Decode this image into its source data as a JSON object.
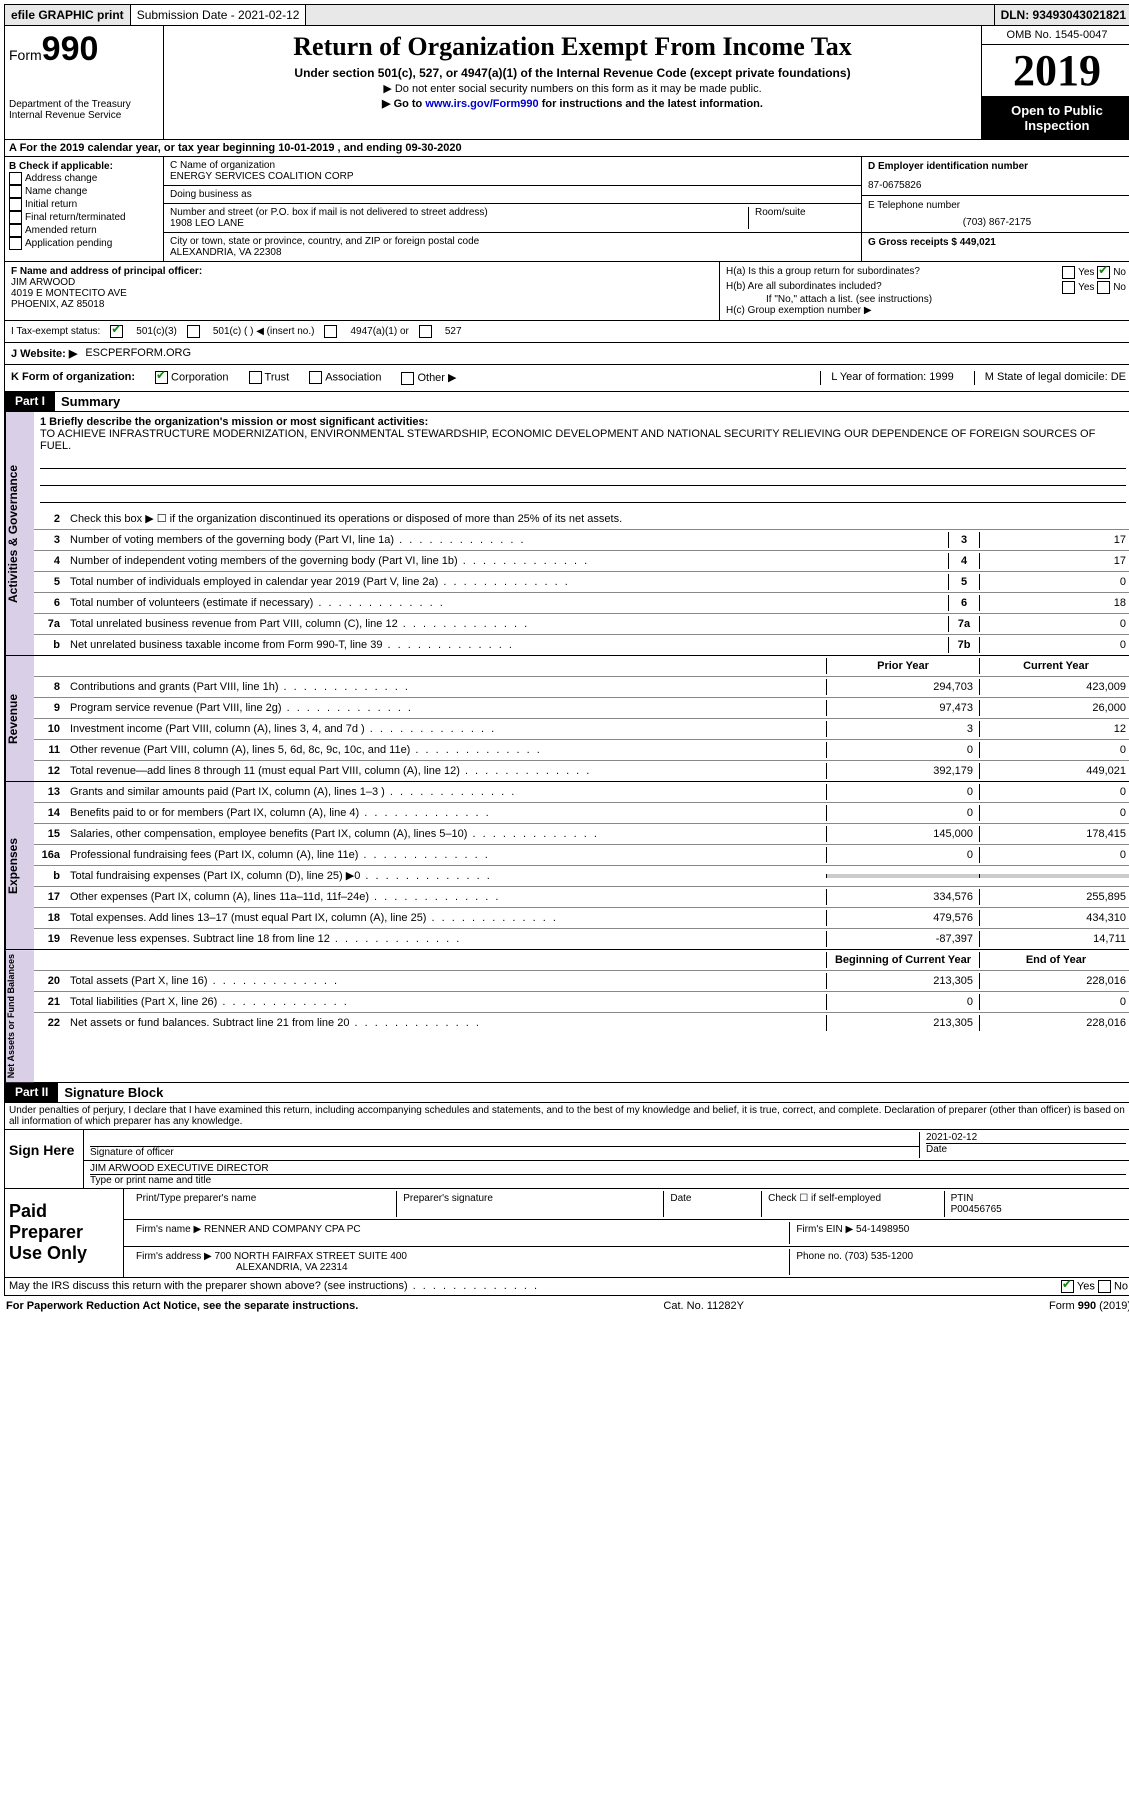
{
  "topbar": {
    "efile": "efile GRAPHIC print",
    "submission_label": "Submission Date - 2021-02-12",
    "dln": "DLN: 93493043021821"
  },
  "header": {
    "form_label": "Form",
    "form_number": "990",
    "dept": "Department of the Treasury\nInternal Revenue Service",
    "title": "Return of Organization Exempt From Income Tax",
    "subtitle": "Under section 501(c), 527, or 4947(a)(1) of the Internal Revenue Code (except private foundations)",
    "note1": "▶ Do not enter social security numbers on this form as it may be made public.",
    "note2_prefix": "▶ Go to ",
    "note2_link": "www.irs.gov/Form990",
    "note2_suffix": " for instructions and the latest information.",
    "omb": "OMB No. 1545-0047",
    "year": "2019",
    "open_public": "Open to Public Inspection"
  },
  "row_a": "A For the 2019 calendar year, or tax year beginning 10-01-2019  , and ending 09-30-2020",
  "section_b": {
    "label": "B Check if applicable:",
    "items": [
      "Address change",
      "Name change",
      "Initial return",
      "Final return/terminated",
      "Amended return",
      "Application pending"
    ]
  },
  "section_c": {
    "name_label": "C Name of organization",
    "name": "ENERGY SERVICES COALITION CORP",
    "dba_label": "Doing business as",
    "dba": "",
    "street_label": "Number and street (or P.O. box if mail is not delivered to street address)",
    "street": "1908 LEO LANE",
    "room_label": "Room/suite",
    "city_label": "City or town, state or province, country, and ZIP or foreign postal code",
    "city": "ALEXANDRIA, VA  22308"
  },
  "section_d": {
    "ein_label": "D Employer identification number",
    "ein": "87-0675826",
    "phone_label": "E Telephone number",
    "phone": "(703) 867-2175",
    "gross_label": "G Gross receipts $ 449,021"
  },
  "section_f": {
    "label": "F  Name and address of principal officer:",
    "name": "JIM ARWOOD",
    "addr1": "4019 E MONTECITO AVE",
    "addr2": "PHOENIX, AZ  85018"
  },
  "section_h": {
    "ha": "H(a)  Is this a group return for subordinates?",
    "hb": "H(b)  Are all subordinates included?",
    "hb_note": "If \"No,\" attach a list. (see instructions)",
    "hc": "H(c)  Group exemption number ▶",
    "yes": "Yes",
    "no": "No"
  },
  "tax_status": {
    "label": "I  Tax-exempt status:",
    "opt1": "501(c)(3)",
    "opt2": "501(c) (  ) ◀ (insert no.)",
    "opt3": "4947(a)(1) or",
    "opt4": "527"
  },
  "website": {
    "label": "J  Website: ▶",
    "value": "ESCPERFORM.ORG"
  },
  "row_k": {
    "label": "K Form of organization:",
    "corp": "Corporation",
    "trust": "Trust",
    "assoc": "Association",
    "other": "Other ▶",
    "l_label": "L Year of formation: 1999",
    "m_label": "M State of legal domicile: DE"
  },
  "part1": {
    "tab": "Part I",
    "title": "Summary",
    "q1": "1  Briefly describe the organization's mission or most significant activities:",
    "mission": "TO ACHIEVE INFRASTRUCTURE MODERNIZATION, ENVIRONMENTAL STEWARDSHIP, ECONOMIC DEVELOPMENT AND NATIONAL SECURITY RELIEVING OUR DEPENDENCE OF FOREIGN SOURCES OF FUEL.",
    "q2": "Check this box ▶ ☐ if the organization discontinued its operations or disposed of more than 25% of its net assets."
  },
  "sidebars": {
    "gov": "Activities & Governance",
    "rev": "Revenue",
    "exp": "Expenses",
    "net": "Net Assets or Fund Balances"
  },
  "gov_lines": [
    {
      "n": "3",
      "d": "Number of voting members of the governing body (Part VI, line 1a)",
      "b": "3",
      "v": "17"
    },
    {
      "n": "4",
      "d": "Number of independent voting members of the governing body (Part VI, line 1b)",
      "b": "4",
      "v": "17"
    },
    {
      "n": "5",
      "d": "Total number of individuals employed in calendar year 2019 (Part V, line 2a)",
      "b": "5",
      "v": "0"
    },
    {
      "n": "6",
      "d": "Total number of volunteers (estimate if necessary)",
      "b": "6",
      "v": "18"
    },
    {
      "n": "7a",
      "d": "Total unrelated business revenue from Part VIII, column (C), line 12",
      "b": "7a",
      "v": "0"
    },
    {
      "n": "b",
      "d": "Net unrelated business taxable income from Form 990-T, line 39",
      "b": "7b",
      "v": "0"
    }
  ],
  "col_headers": {
    "prior": "Prior Year",
    "current": "Current Year",
    "begin": "Beginning of Current Year",
    "end": "End of Year"
  },
  "rev_lines": [
    {
      "n": "8",
      "d": "Contributions and grants (Part VIII, line 1h)",
      "p": "294,703",
      "c": "423,009"
    },
    {
      "n": "9",
      "d": "Program service revenue (Part VIII, line 2g)",
      "p": "97,473",
      "c": "26,000"
    },
    {
      "n": "10",
      "d": "Investment income (Part VIII, column (A), lines 3, 4, and 7d )",
      "p": "3",
      "c": "12"
    },
    {
      "n": "11",
      "d": "Other revenue (Part VIII, column (A), lines 5, 6d, 8c, 9c, 10c, and 11e)",
      "p": "0",
      "c": "0"
    },
    {
      "n": "12",
      "d": "Total revenue—add lines 8 through 11 (must equal Part VIII, column (A), line 12)",
      "p": "392,179",
      "c": "449,021"
    }
  ],
  "exp_lines": [
    {
      "n": "13",
      "d": "Grants and similar amounts paid (Part IX, column (A), lines 1–3 )",
      "p": "0",
      "c": "0"
    },
    {
      "n": "14",
      "d": "Benefits paid to or for members (Part IX, column (A), line 4)",
      "p": "0",
      "c": "0"
    },
    {
      "n": "15",
      "d": "Salaries, other compensation, employee benefits (Part IX, column (A), lines 5–10)",
      "p": "145,000",
      "c": "178,415"
    },
    {
      "n": "16a",
      "d": "Professional fundraising fees (Part IX, column (A), line 11e)",
      "p": "0",
      "c": "0"
    },
    {
      "n": "b",
      "d": "Total fundraising expenses (Part IX, column (D), line 25) ▶0",
      "p": "",
      "c": "",
      "grey": true
    },
    {
      "n": "17",
      "d": "Other expenses (Part IX, column (A), lines 11a–11d, 11f–24e)",
      "p": "334,576",
      "c": "255,895"
    },
    {
      "n": "18",
      "d": "Total expenses. Add lines 13–17 (must equal Part IX, column (A), line 25)",
      "p": "479,576",
      "c": "434,310"
    },
    {
      "n": "19",
      "d": "Revenue less expenses. Subtract line 18 from line 12",
      "p": "-87,397",
      "c": "14,711"
    }
  ],
  "net_lines": [
    {
      "n": "20",
      "d": "Total assets (Part X, line 16)",
      "p": "213,305",
      "c": "228,016"
    },
    {
      "n": "21",
      "d": "Total liabilities (Part X, line 26)",
      "p": "0",
      "c": "0"
    },
    {
      "n": "22",
      "d": "Net assets or fund balances. Subtract line 21 from line 20",
      "p": "213,305",
      "c": "228,016"
    }
  ],
  "part2": {
    "tab": "Part II",
    "title": "Signature Block",
    "penalties": "Under penalties of perjury, I declare that I have examined this return, including accompanying schedules and statements, and to the best of my knowledge and belief, it is true, correct, and complete. Declaration of preparer (other than officer) is based on all information of which preparer has any knowledge."
  },
  "sign_here": {
    "label": "Sign Here",
    "sig_officer": "Signature of officer",
    "date_label": "Date",
    "date": "2021-02-12",
    "name_title": "JIM ARWOOD  EXECUTIVE DIRECTOR",
    "type_label": "Type or print name and title"
  },
  "paid_prep": {
    "label": "Paid Preparer Use Only",
    "print_name": "Print/Type preparer's name",
    "prep_sig": "Preparer's signature",
    "date": "Date",
    "check_self": "Check ☐ if self-employed",
    "ptin_label": "PTIN",
    "ptin": "P00456765",
    "firm_name_label": "Firm's name    ▶",
    "firm_name": "RENNER AND COMPANY CPA PC",
    "firm_ein_label": "Firm's EIN ▶",
    "firm_ein": "54-1498950",
    "firm_addr_label": "Firm's address ▶",
    "firm_addr1": "700 NORTH FAIRFAX STREET SUITE 400",
    "firm_addr2": "ALEXANDRIA, VA  22314",
    "phone_label": "Phone no.",
    "phone": "(703) 535-1200"
  },
  "discuss": "May the IRS discuss this return with the preparer shown above? (see instructions)",
  "footer": {
    "left": "For Paperwork Reduction Act Notice, see the separate instructions.",
    "mid": "Cat. No. 11282Y",
    "right": "Form 990 (2019)"
  }
}
